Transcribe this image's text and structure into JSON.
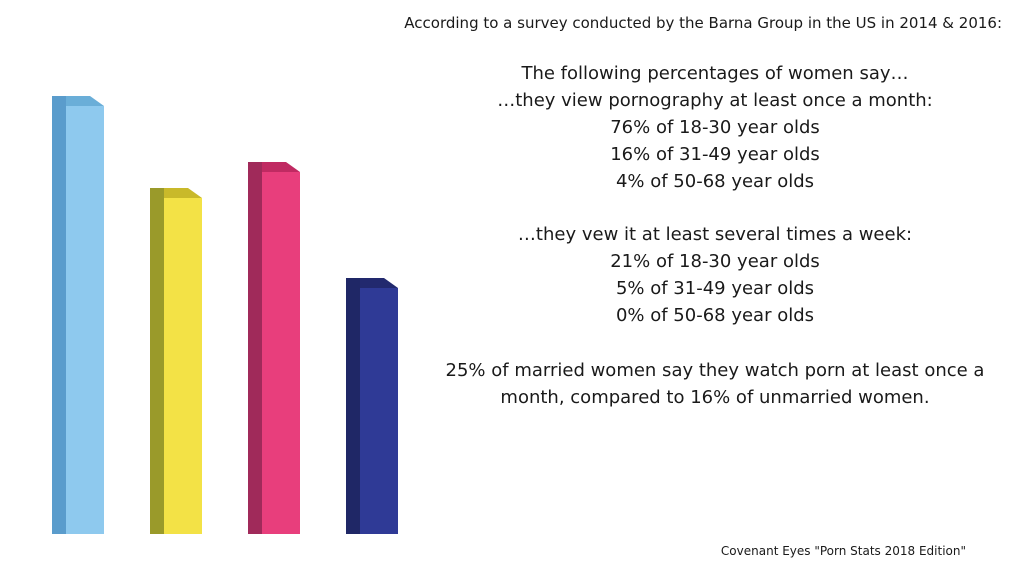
{
  "intro": "According to a survey conducted by the Barna Group in the US in 2014 & 2016:",
  "heading": "The following percentages of women say…",
  "monthly": {
    "lead": "…they view pornography at least once a month:",
    "lines": [
      "76% of 18-30 year olds",
      "16% of 31-49 year olds",
      "4% of 50-68 year olds"
    ]
  },
  "weekly": {
    "lead": "…they vew it at least several times a week:",
    "lines": [
      "21% of 18-30 year olds",
      "5% of 31-49 year olds",
      "0% of 50-68 year olds"
    ]
  },
  "married": {
    "line1": "25% of married women say they watch porn at least once a",
    "line2": "month, compared to 16% of unmarried women."
  },
  "footer": "Covenant Eyes \"Porn Stats 2018 Edition\"",
  "bar_colors": [
    "#8ec9ee",
    "#f3e246",
    "#e83e7c",
    "#2f3a96"
  ]
}
